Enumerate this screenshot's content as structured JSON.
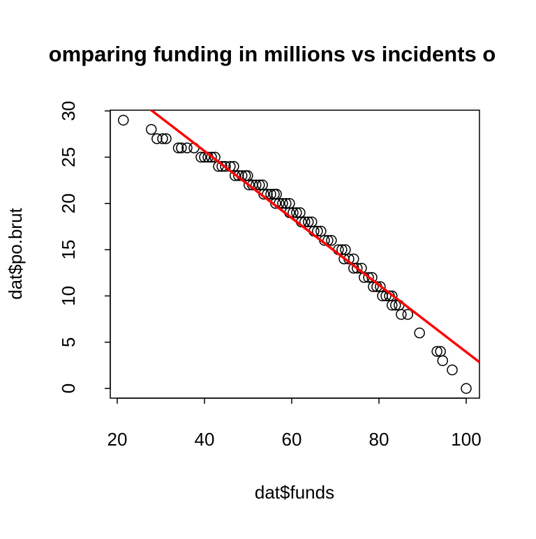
{
  "chart_data": {
    "type": "scatter",
    "title": "omparing funding in millions vs incidents o",
    "x_label": "dat$funds",
    "y_label": "dat$po.brut",
    "xlim": [
      18.4,
      103.04
    ],
    "ylim": [
      -1.05,
      30.08
    ],
    "xticks": [
      20,
      40,
      60,
      80,
      100
    ],
    "yticks": [
      0,
      5,
      10,
      15,
      20,
      25,
      30
    ],
    "series": [
      {
        "color": "#000000",
        "x": [
          21.4,
          27.8,
          29.1,
          30.4,
          31.2,
          34,
          34.7,
          36,
          37.6,
          39.2,
          40,
          40.8,
          41.6,
          42.4,
          43.2,
          44,
          44.8,
          45.9,
          46.7,
          47,
          47.8,
          48.6,
          49.4,
          49.9,
          50.2,
          51,
          51.8,
          52.6,
          53.3,
          53.6,
          54.4,
          55.2,
          56,
          56.5,
          56.3,
          57.1,
          57.9,
          58.7,
          59.5,
          59.5,
          60.3,
          61.1,
          61.9,
          62.2,
          63,
          63.8,
          64.6,
          65.1,
          65.9,
          66.7,
          67.5,
          68.3,
          69.1,
          70.7,
          71.5,
          72.3,
          72,
          73.1,
          74.2,
          74.2,
          75,
          76,
          76.6,
          77.6,
          78.4,
          78.7,
          79.5,
          80.3,
          80.8,
          81.6,
          82.4,
          83,
          83,
          83.8,
          84.6,
          85.1,
          86.6,
          89.3,
          93.3,
          94.1,
          94.6,
          96.8,
          100
        ],
        "y": [
          29,
          28,
          27,
          27,
          27,
          26,
          26,
          26,
          26,
          25,
          25,
          25,
          25,
          25,
          24,
          24,
          24,
          24,
          24,
          23,
          23,
          23,
          23,
          23,
          22,
          22,
          22,
          22,
          22,
          21,
          21,
          21,
          21,
          21,
          20,
          20,
          20,
          20,
          20,
          19,
          19,
          19,
          19,
          18,
          18,
          18,
          18,
          17,
          17,
          17,
          16,
          16,
          16,
          15,
          15,
          15,
          14,
          14,
          14,
          13,
          13,
          13,
          12,
          12,
          12,
          11,
          11,
          11,
          10,
          10,
          10,
          10,
          9,
          9,
          9,
          8,
          8,
          6,
          4,
          4,
          3,
          2,
          0
        ]
      }
    ],
    "abline": {
      "intercept": 40.14,
      "slope": -0.362,
      "color": "#ff0000"
    }
  }
}
